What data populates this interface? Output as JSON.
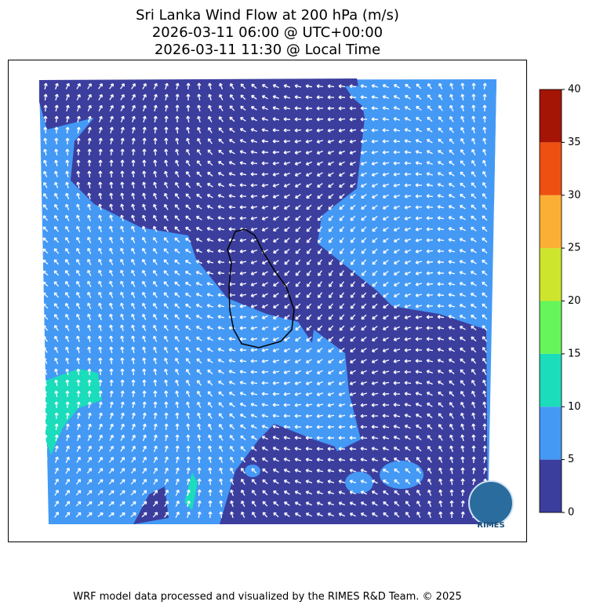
{
  "title": [
    "Sri Lanka Wind Flow at 200 hPa (m/s)",
    "2026-03-11 06:00 @ UTC+00:00",
    "2026-03-11 11:30 @ Local Time"
  ],
  "colorbar": {
    "levels": [
      0,
      5,
      10,
      15,
      20,
      25,
      30,
      35,
      40
    ],
    "colors": [
      "#3c3e9e",
      "#4499f5",
      "#1bdcbb",
      "#66f55a",
      "#cde52c",
      "#fbb035",
      "#ee5011",
      "#a51505"
    ]
  },
  "logo": "RIMES",
  "footer": "WRF model data processed and visualized by the RIMES R&D Team. © 2025"
}
